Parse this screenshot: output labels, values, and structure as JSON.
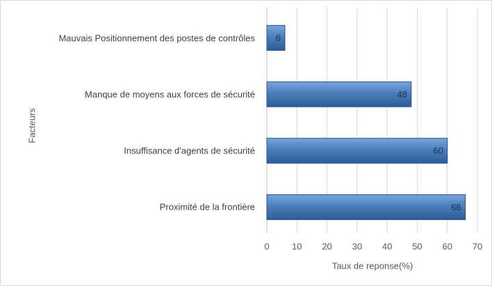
{
  "chart_data": {
    "type": "bar",
    "orientation": "horizontal",
    "categories": [
      "Mauvais Positionnement des postes de contrôles",
      "Manque de moyens aux forces de sécurité",
      "Insuffisance d'agents de sécurité",
      "Proximité de la frontière"
    ],
    "values": [
      6,
      48,
      60,
      66
    ],
    "color": "#4a7ebb",
    "xlim": [
      0,
      70
    ],
    "xticks": [
      0,
      10,
      20,
      30,
      40,
      50,
      60,
      70
    ],
    "xlabel": "Taux de reponse(%)",
    "ylabel": "Facteurs",
    "grid": true
  }
}
